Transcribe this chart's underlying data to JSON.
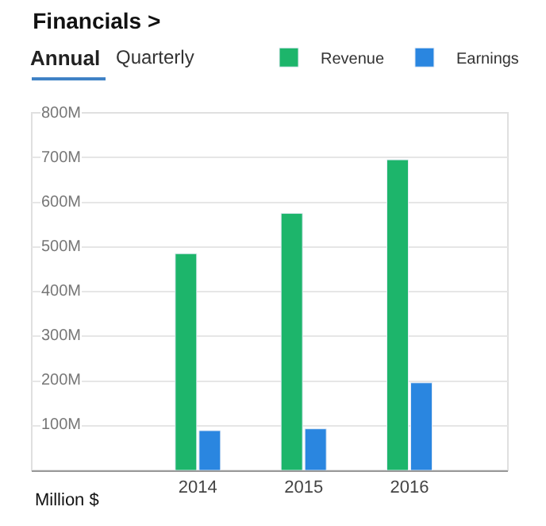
{
  "chart_data": {
    "type": "bar",
    "title": "Financials >",
    "subtitle": "Annual",
    "annotations": [
      "Quarterly",
      "Million $"
    ],
    "categories": [
      "2014",
      "2015",
      "2016"
    ],
    "series": [
      {
        "name": "Revenue",
        "color": "#1db56b",
        "values": [
          485,
          575,
          695
        ]
      },
      {
        "name": "Earnings",
        "color": "#2a86e0",
        "values": [
          89,
          93,
          196
        ]
      }
    ],
    "ylim": [
      0,
      800
    ],
    "yticks": [
      {
        "value": 100,
        "label": "100M"
      },
      {
        "value": 200,
        "label": "200M"
      },
      {
        "value": 300,
        "label": "300M"
      },
      {
        "value": 400,
        "label": "400M"
      },
      {
        "value": 500,
        "label": "500M"
      },
      {
        "value": 600,
        "label": "600M"
      },
      {
        "value": 700,
        "label": "700M"
      },
      {
        "value": 800,
        "label": "800M"
      }
    ],
    "grid": "y",
    "legend": "top right"
  }
}
